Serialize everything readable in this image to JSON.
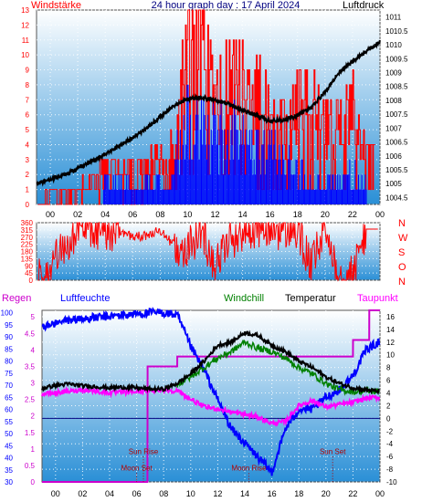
{
  "colors": {
    "background": "#ffffff",
    "plot_top": "#ffffff",
    "plot_bottom": "#2a8fd6",
    "wind_speed": "#ff0000",
    "wind_gust": "#0000ff",
    "pressure": "#000000",
    "wind_direction": "#ff0000",
    "humidity": "#0000ff",
    "windchill": "#008000",
    "temperature": "#000000",
    "dewpoint": "#ff00ff",
    "rain": "#cc00cc",
    "zero_line": "#000080",
    "sun_label": "#b00000",
    "moon_label": "#b00000",
    "axis_text": "#000000"
  },
  "chart_data": [
    {
      "type": "line",
      "id": "wind-pressure",
      "title": "24 hour graph day : 17 April 2024",
      "left_label": "Windstärke",
      "right_label": "Luftdruck",
      "x_ticks": [
        "00",
        "02",
        "04",
        "06",
        "08",
        "10",
        "12",
        "14",
        "16",
        "18",
        "20",
        "22",
        "00"
      ],
      "y_left_ticks": [
        0,
        1,
        2,
        3,
        4,
        5,
        6,
        7,
        8,
        9,
        10,
        11,
        12,
        13
      ],
      "y_left_range": [
        0,
        13
      ],
      "y_right_ticks": [
        1004.5,
        1005,
        1005.5,
        1006,
        1006.5,
        1007,
        1007.5,
        1008,
        1008.5,
        1009,
        1009.5,
        1010,
        1010.5,
        1011
      ],
      "y_right_range": [
        1004.25,
        1011.25
      ],
      "hours_range": [
        -1.0,
        24.0
      ],
      "pressure_hpa": [
        [
          -1.0,
          1005.0
        ],
        [
          1,
          1005.3
        ],
        [
          2,
          1005.55
        ],
        [
          3,
          1005.8
        ],
        [
          4,
          1006.05
        ],
        [
          5,
          1006.35
        ],
        [
          6,
          1006.65
        ],
        [
          7,
          1007.0
        ],
        [
          8,
          1007.4
        ],
        [
          9,
          1007.8
        ],
        [
          10,
          1008.05
        ],
        [
          11,
          1008.1
        ],
        [
          12,
          1008.0
        ],
        [
          13,
          1007.85
        ],
        [
          14,
          1007.65
        ],
        [
          15,
          1007.45
        ],
        [
          16,
          1007.25
        ],
        [
          17,
          1007.3
        ],
        [
          18,
          1007.45
        ],
        [
          19,
          1007.75
        ],
        [
          20,
          1008.3
        ],
        [
          21,
          1009.0
        ],
        [
          22,
          1009.4
        ],
        [
          23,
          1009.75
        ],
        [
          24.0,
          1010.1
        ]
      ],
      "wind_speed_envelope_bft": [
        [
          -0.5,
          1
        ],
        [
          1,
          1
        ],
        [
          3,
          2
        ],
        [
          4,
          4
        ],
        [
          5,
          3
        ],
        [
          5.5,
          3
        ],
        [
          6.5,
          3
        ],
        [
          7.5,
          4
        ],
        [
          8,
          4
        ],
        [
          9,
          5
        ],
        [
          9.5,
          10
        ],
        [
          10,
          13
        ],
        [
          11,
          13
        ],
        [
          12,
          11
        ],
        [
          13,
          11
        ],
        [
          14,
          11
        ],
        [
          15,
          10
        ],
        [
          16,
          8
        ],
        [
          17,
          7
        ],
        [
          18,
          9
        ],
        [
          19,
          9
        ],
        [
          20,
          7
        ],
        [
          21,
          7
        ],
        [
          22,
          10
        ],
        [
          22.5,
          6
        ],
        [
          23,
          4
        ]
      ],
      "wind_gust_envelope_bft": [
        [
          3.8,
          1
        ],
        [
          4,
          2
        ],
        [
          5.5,
          2
        ],
        [
          8.5,
          2
        ],
        [
          9,
          4
        ],
        [
          10,
          8
        ],
        [
          11,
          8
        ],
        [
          12,
          7
        ],
        [
          13,
          7
        ],
        [
          14,
          6
        ],
        [
          15,
          6
        ],
        [
          16,
          5
        ],
        [
          17,
          4
        ],
        [
          18,
          4
        ],
        [
          19,
          2
        ],
        [
          21,
          2
        ],
        [
          22,
          3
        ],
        [
          23,
          2
        ]
      ]
    },
    {
      "type": "scatter",
      "id": "wind-direction",
      "y_left_ticks": [
        0,
        45,
        90,
        135,
        180,
        225,
        270,
        315,
        360
      ],
      "y_left_range": [
        0,
        360
      ],
      "y_right_labels": [
        "N",
        "W",
        "S",
        "O",
        "N"
      ],
      "hours_range": [
        -1.0,
        24.0
      ],
      "direction_deg": [
        [
          0,
          15
        ],
        [
          0.5,
          200
        ],
        [
          1,
          210
        ],
        [
          2,
          310
        ],
        [
          3,
          330
        ],
        [
          4,
          300
        ],
        [
          5,
          315
        ],
        [
          6,
          270
        ],
        [
          7,
          280
        ],
        [
          8,
          310
        ],
        [
          9,
          220
        ],
        [
          10,
          200
        ],
        [
          11,
          310
        ],
        [
          12,
          100
        ],
        [
          13,
          250
        ],
        [
          14,
          300
        ],
        [
          15,
          330
        ],
        [
          16,
          320
        ],
        [
          17,
          310
        ],
        [
          18,
          300
        ],
        [
          19,
          80
        ],
        [
          20,
          320
        ],
        [
          21,
          60
        ],
        [
          22,
          30
        ],
        [
          23,
          320
        ]
      ]
    },
    {
      "type": "line",
      "id": "temp-humidity",
      "legend": [
        "Regen",
        "Luftfeuchte",
        "Windchill",
        "Temperatur",
        "Taupunkt"
      ],
      "x_ticks": [
        "00",
        "02",
        "04",
        "06",
        "08",
        "10",
        "12",
        "14",
        "16",
        "18",
        "20",
        "22",
        "00"
      ],
      "rain_ticks": [
        0,
        0.5,
        1,
        1.5,
        2,
        2.5,
        3,
        3.5,
        4,
        4.5,
        5
      ],
      "rain_range": [
        0,
        5.2
      ],
      "humidity_ticks": [
        30,
        35,
        40,
        45,
        50,
        55,
        60,
        65,
        70,
        75,
        80,
        85,
        90,
        95,
        100
      ],
      "humidity_range": [
        30,
        101
      ],
      "temperature_ticks": [
        -10,
        -8,
        -6,
        -4,
        -2,
        0,
        2,
        4,
        6,
        8,
        10,
        12,
        14,
        16
      ],
      "temperature_range": [
        -10,
        17
      ],
      "hours_range": [
        -1.0,
        24.0
      ],
      "temperature_c": [
        [
          -1.0,
          4.7
        ],
        [
          0,
          5.2
        ],
        [
          1,
          5.4
        ],
        [
          2,
          5.1
        ],
        [
          3,
          5.0
        ],
        [
          4,
          4.8
        ],
        [
          5,
          4.9
        ],
        [
          6,
          4.8
        ],
        [
          7,
          4.6
        ],
        [
          8,
          4.6
        ],
        [
          9,
          5.5
        ],
        [
          10,
          7.0
        ],
        [
          11,
          9.0
        ],
        [
          12,
          11.5
        ],
        [
          13,
          12.0
        ],
        [
          14,
          13.5
        ],
        [
          15,
          13.0
        ],
        [
          16,
          11.5
        ],
        [
          17,
          10.5
        ],
        [
          18,
          9.0
        ],
        [
          19,
          8.0
        ],
        [
          20,
          6.5
        ],
        [
          21,
          5.5
        ],
        [
          22,
          4.8
        ],
        [
          23,
          4.5
        ],
        [
          24.0,
          4.2
        ]
      ],
      "windchill_c": [
        [
          9,
          5.3
        ],
        [
          10,
          6.5
        ],
        [
          11,
          8.0
        ],
        [
          12,
          9.5
        ],
        [
          13,
          10.5
        ],
        [
          14,
          12.0
        ],
        [
          15,
          11.0
        ],
        [
          16,
          10.5
        ],
        [
          17,
          9.5
        ],
        [
          18,
          8.0
        ],
        [
          19,
          7.0
        ],
        [
          20,
          5.5
        ],
        [
          21,
          4.5
        ],
        [
          22,
          4.2
        ],
        [
          23,
          4.3
        ],
        [
          24.0,
          4.2
        ]
      ],
      "dewpoint_c": [
        [
          -1.0,
          3.8
        ],
        [
          0,
          4.0
        ],
        [
          2,
          4.5
        ],
        [
          4,
          4.0
        ],
        [
          6,
          4.2
        ],
        [
          8,
          4.5
        ],
        [
          9,
          4.3
        ],
        [
          10,
          3.0
        ],
        [
          11,
          1.8
        ],
        [
          12,
          1.5
        ],
        [
          13,
          1.0
        ],
        [
          14,
          0.6
        ],
        [
          15,
          0.2
        ],
        [
          16,
          -0.8
        ],
        [
          17,
          -0.5
        ],
        [
          18,
          2.0
        ],
        [
          19,
          2.8
        ],
        [
          20,
          1.8
        ],
        [
          21,
          2.2
        ],
        [
          22,
          2.5
        ],
        [
          23,
          3.2
        ],
        [
          24.0,
          3.3
        ]
      ],
      "humidity_pct": [
        [
          -1.0,
          94
        ],
        [
          1,
          97
        ],
        [
          3,
          98
        ],
        [
          5,
          99
        ],
        [
          7,
          100
        ],
        [
          8,
          100
        ],
        [
          9,
          99
        ],
        [
          10,
          86
        ],
        [
          11,
          76
        ],
        [
          12,
          64
        ],
        [
          13,
          52
        ],
        [
          14,
          46
        ],
        [
          15,
          40
        ],
        [
          16,
          34
        ],
        [
          17,
          52
        ],
        [
          18,
          60
        ],
        [
          19,
          60
        ],
        [
          20,
          65
        ],
        [
          21,
          68
        ],
        [
          22,
          74
        ],
        [
          23,
          85
        ],
        [
          24.0,
          88
        ]
      ],
      "rain_cumulative_mm": [
        [
          -1.0,
          0
        ],
        [
          6.8,
          0
        ],
        [
          6.81,
          3.5
        ],
        [
          9.0,
          3.5
        ],
        [
          9.01,
          3.8
        ],
        [
          22.0,
          3.8
        ],
        [
          22.01,
          4.3
        ],
        [
          23.2,
          4.3
        ],
        [
          23.21,
          5.2
        ],
        [
          24.0,
          5.2
        ]
      ],
      "annotations": [
        {
          "label": "Moon Set",
          "hour": 6.0,
          "y_rain": 0.35
        },
        {
          "label": "Sun Rise",
          "hour": 6.5,
          "y_rain": 0.85
        },
        {
          "label": "Moon Rise",
          "hour": 14.3,
          "y_rain": 0.35
        },
        {
          "label": "Sun Set",
          "hour": 20.5,
          "y_rain": 0.85
        }
      ]
    }
  ]
}
